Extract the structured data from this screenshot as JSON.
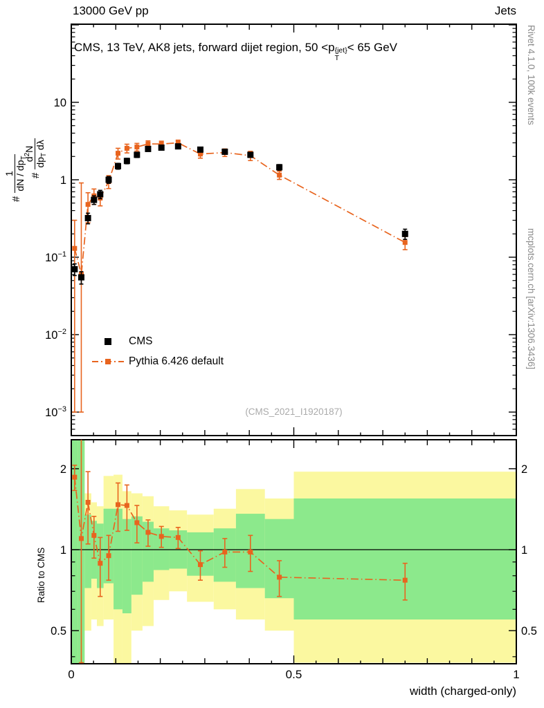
{
  "header": {
    "left": "13000 GeV pp",
    "right": "Jets"
  },
  "title": {
    "pre": "CMS, 13 TeV, AK8 jets, forward dijet region, 50 <p",
    "sup": "{jet}",
    "sub": "T",
    "post": "< 65 GeV"
  },
  "legend": [
    {
      "label": "CMS"
    },
    {
      "label": "Pythia 6.426 default"
    }
  ],
  "watermark": "(CMS_2021_I1920187)",
  "side_labels": {
    "top_right": "Rivet 4.1.0, 100k events",
    "bottom_right": "mcplots.cern.ch [arXiv:1306.3436]"
  },
  "axes": {
    "x_label": "width (charged-only)",
    "ratio_label": "Ratio to CMS",
    "y_label": {
      "hash1": "#",
      "f1_num": "1",
      "f1_den_pre": "dN / dp",
      "f1_den_sub": "T",
      "hash2": "#",
      "f2_num_pre": "d",
      "f2_num_sup": "2",
      "f2_num_post": "N",
      "f2_den_pre": "dp",
      "f2_den_sub": "T",
      "f2_den_post": " dλ"
    }
  },
  "colors": {
    "pythia": "#e8641e",
    "cms": "#000000",
    "band_yellow": "#fbf8a0",
    "band_green": "#8ce98c",
    "gray_text": "#8a8a8a"
  },
  "chart_data": {
    "type": "scatter",
    "title": "CMS, 13 TeV, AK8 jets, forward dijet region, 50 < pT{jet} < 65 GeV",
    "xlabel": "width (charged-only)",
    "ylabel": "# 1/(dN/dpT) d2N/(dpT dlambda)",
    "ratio_ylabel": "Ratio to CMS",
    "x_range": [
      0,
      1
    ],
    "main_y_log_range": [
      0.0005,
      100
    ],
    "ratio_y_log_range": [
      0.377,
      2.58
    ],
    "grid": false,
    "legend_position": "inside-left",
    "x_ticks": [
      {
        "v": 0,
        "label": "0"
      },
      {
        "v": 0.5,
        "label": "0.5"
      },
      {
        "v": 1,
        "label": "1"
      }
    ],
    "main_y_ticks": [
      {
        "v": 10,
        "base": "10",
        "exp": ""
      },
      {
        "v": 1,
        "base": "1",
        "exp": ""
      },
      {
        "v": 0.1,
        "base": "10",
        "exp": "−1"
      },
      {
        "v": 0.01,
        "base": "10",
        "exp": "−2"
      },
      {
        "v": 0.001,
        "base": "10",
        "exp": "−3"
      }
    ],
    "ratio_y_ticks": [
      {
        "v": 2,
        "label": "2"
      },
      {
        "v": 1,
        "label": "1"
      },
      {
        "v": 0.5,
        "label": "0.5"
      }
    ],
    "ratio_y_minor_ticks": [
      0.4,
      0.6,
      0.7,
      0.8,
      0.9
    ],
    "bin_edges": [
      0,
      0.015,
      0.03,
      0.045,
      0.0575,
      0.0725,
      0.095,
      0.115,
      0.135,
      0.16,
      0.185,
      0.22,
      0.26,
      0.32,
      0.37,
      0.435,
      0.5,
      1.0
    ],
    "x": [
      0.0075,
      0.0225,
      0.0375,
      0.051,
      0.065,
      0.084,
      0.105,
      0.125,
      0.1475,
      0.1725,
      0.2025,
      0.24,
      0.29,
      0.345,
      0.4025,
      0.4675,
      0.75
    ],
    "series": [
      {
        "name": "CMS",
        "marker": "square-black",
        "y": [
          0.07,
          0.055,
          0.32,
          0.55,
          0.65,
          1.0,
          1.5,
          1.75,
          2.1,
          2.5,
          2.6,
          2.7,
          2.45,
          2.3,
          2.1,
          1.45,
          0.2
        ],
        "err": [
          0.012,
          0.01,
          0.05,
          0.07,
          0.08,
          0.1,
          0.13,
          0.14,
          0.16,
          0.17,
          0.17,
          0.17,
          0.16,
          0.16,
          0.15,
          0.12,
          0.03
        ]
      },
      {
        "name": "Pythia 6.426 default",
        "marker": "square-orange-dashdot",
        "y": [
          0.13,
          0.06,
          0.48,
          0.62,
          0.58,
          0.95,
          2.2,
          2.55,
          2.65,
          2.9,
          2.9,
          3.0,
          2.15,
          2.25,
          2.05,
          1.15,
          0.155
        ],
        "err_lo": [
          0.129,
          0.059,
          0.2,
          0.14,
          0.12,
          0.18,
          0.35,
          0.33,
          0.3,
          0.28,
          0.25,
          0.25,
          0.25,
          0.25,
          0.28,
          0.14,
          0.03
        ],
        "err_hi": [
          0.17,
          0.85,
          0.2,
          0.14,
          0.12,
          0.18,
          0.35,
          0.33,
          0.3,
          0.28,
          0.25,
          0.25,
          0.25,
          0.25,
          0.28,
          0.14,
          0.03
        ]
      }
    ],
    "ratio": {
      "name": "Pythia 6.426 default / CMS",
      "reference_line": 1,
      "y": [
        1.86,
        1.1,
        1.5,
        1.13,
        0.89,
        0.95,
        1.47,
        1.46,
        1.26,
        1.16,
        1.12,
        1.11,
        0.88,
        0.98,
        0.98,
        0.79,
        0.77
      ],
      "err_lo": [
        0.2,
        0.72,
        0.45,
        0.2,
        0.22,
        0.18,
        0.3,
        0.28,
        0.2,
        0.13,
        0.1,
        0.1,
        0.11,
        0.12,
        0.15,
        0.12,
        0.12
      ],
      "err_hi": [
        0.2,
        1.6,
        0.45,
        0.2,
        0.22,
        0.18,
        0.3,
        0.28,
        0.2,
        0.13,
        0.1,
        0.1,
        0.11,
        0.12,
        0.15,
        0.12,
        0.12
      ]
    },
    "bands": {
      "yellow_lo": [
        0.36,
        0.36,
        0.5,
        0.55,
        0.52,
        0.55,
        0.35,
        0.35,
        0.5,
        0.52,
        0.65,
        0.7,
        0.64,
        0.6,
        0.55,
        0.5,
        0.38
      ],
      "yellow_hi": [
        2.6,
        2.6,
        1.62,
        1.5,
        1.45,
        1.88,
        1.9,
        1.65,
        1.62,
        1.58,
        1.45,
        1.4,
        1.35,
        1.42,
        1.68,
        1.55,
        1.95
      ],
      "green_lo": [
        0.36,
        0.36,
        0.72,
        0.78,
        0.72,
        0.75,
        0.6,
        0.58,
        0.68,
        0.76,
        0.84,
        0.85,
        0.8,
        0.76,
        0.72,
        0.66,
        0.55
      ],
      "green_hi": [
        2.6,
        2.6,
        1.35,
        1.28,
        1.25,
        1.42,
        1.42,
        1.3,
        1.33,
        1.27,
        1.2,
        1.18,
        1.16,
        1.2,
        1.36,
        1.3,
        1.55
      ]
    }
  }
}
